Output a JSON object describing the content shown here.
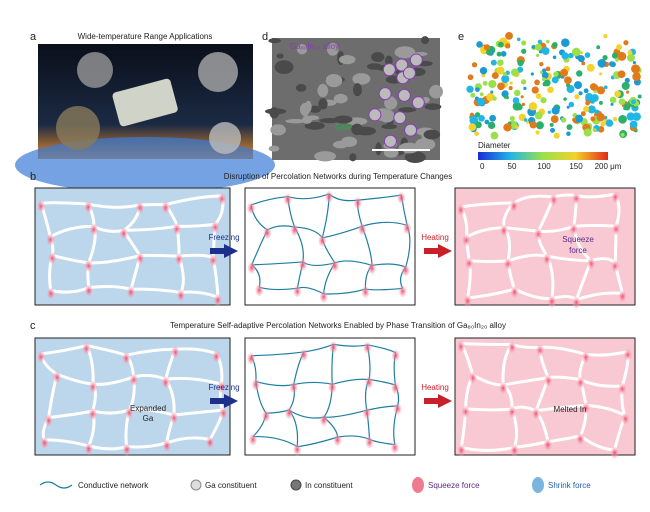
{
  "panel_a": {
    "letter": "a",
    "title": "Wide-temperature Range Applications"
  },
  "panel_d": {
    "letter": "d",
    "alloy_label": "Ga₈₀In₂₀ alloy",
    "gnp_label": "GNP"
  },
  "panel_e": {
    "letter": "e",
    "colorbar_title": "Diameter",
    "colorbar_labels": [
      "0",
      "50",
      "100",
      "150",
      "200 μm"
    ]
  },
  "panel_b": {
    "letter": "b",
    "title": "Disruption of Percolation Networks during Temperature Changes",
    "freezing": "Freezing",
    "heating": "Heating",
    "squeeze_label": [
      "Squeeze",
      "force"
    ]
  },
  "panel_c": {
    "letter": "c",
    "title": "Temperature Self-adaptive Percolation Networks Enabled by Phase Transition of Ga₈₀In₂₀ alloy",
    "freezing": "Freezing",
    "heating": "Heating",
    "expanded_label": [
      "Expanded",
      "Ga"
    ],
    "melted_label": "Melted In"
  },
  "legend": [
    "Conductive network",
    "Ga constituent",
    "In constituent",
    "Squeeze force",
    "Shrink force"
  ]
}
